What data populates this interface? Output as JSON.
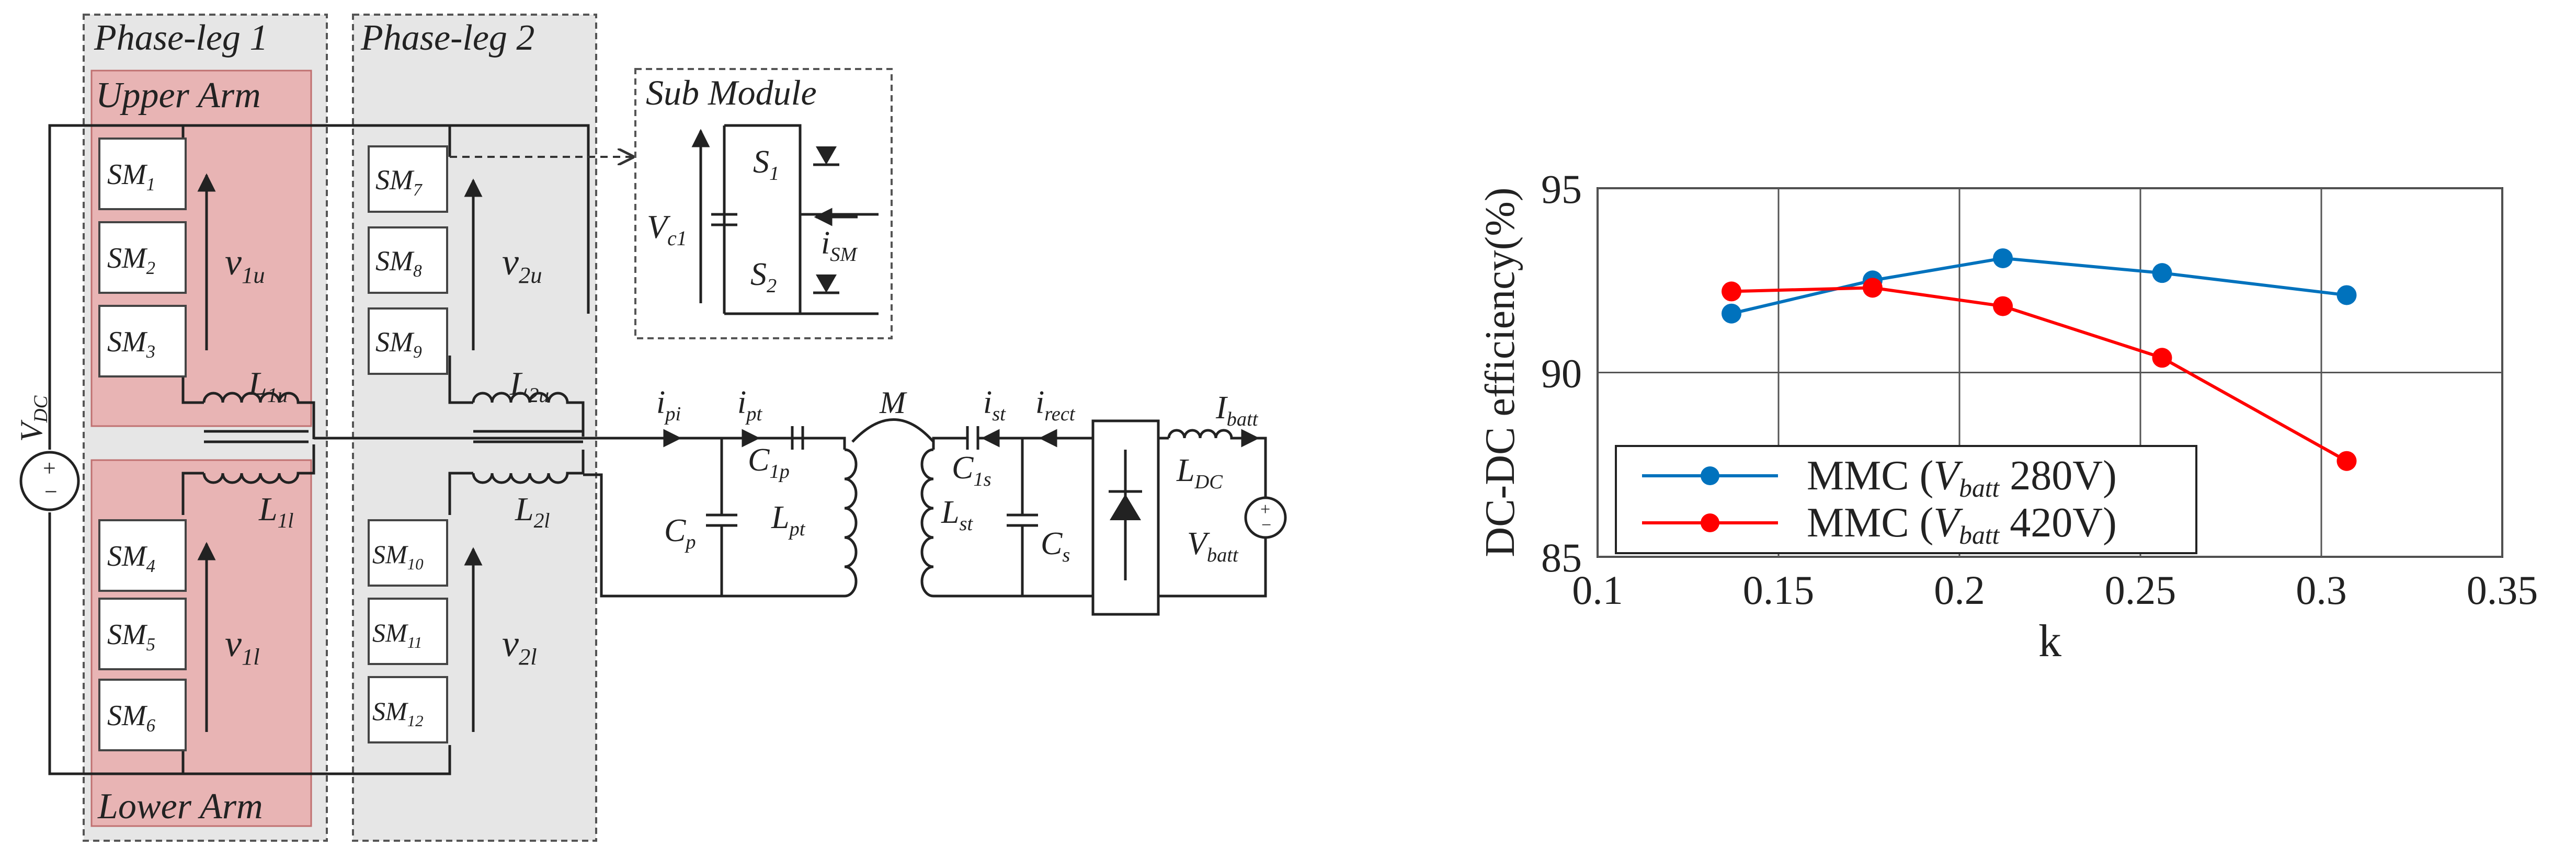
{
  "circuit": {
    "phase_leg_1": "Phase-leg 1",
    "phase_leg_2": "Phase-leg 2",
    "upper_arm": "Upper Arm",
    "lower_arm": "Lower Arm",
    "sub_module": "Sub Module",
    "vdc": {
      "main": "V",
      "sub": "DC"
    },
    "sm_leg1_upper": [
      [
        "SM",
        "1"
      ],
      [
        "SM",
        "2"
      ],
      [
        "SM",
        "3"
      ]
    ],
    "sm_leg1_lower": [
      [
        "SM",
        "4"
      ],
      [
        "SM",
        "5"
      ],
      [
        "SM",
        "6"
      ]
    ],
    "sm_leg2_upper": [
      [
        "SM",
        "7"
      ],
      [
        "SM",
        "8"
      ],
      [
        "SM",
        "9"
      ]
    ],
    "sm_leg2_lower": [
      [
        "SM",
        "10"
      ],
      [
        "SM",
        "11"
      ],
      [
        "SM",
        "12"
      ]
    ],
    "v1u": {
      "main": "v",
      "sub": "1u"
    },
    "v2u": {
      "main": "v",
      "sub": "2u"
    },
    "v1l": {
      "main": "v",
      "sub": "1l"
    },
    "v2l": {
      "main": "v",
      "sub": "2l"
    },
    "L1u": {
      "main": "L",
      "sub": "1u"
    },
    "L2u": {
      "main": "L",
      "sub": "2u"
    },
    "L1l": {
      "main": "L",
      "sub": "1l"
    },
    "L2l": {
      "main": "L",
      "sub": "2l"
    },
    "Vc1": {
      "main": "V",
      "sub": "c1"
    },
    "S1": {
      "main": "S",
      "sub": "1"
    },
    "S2": {
      "main": "S",
      "sub": "2"
    },
    "iSM": {
      "main": "i",
      "sub": "SM"
    },
    "ipi": {
      "main": "i",
      "sub": "pi"
    },
    "ipt": {
      "main": "i",
      "sub": "pt"
    },
    "M": "M",
    "ist": {
      "main": "i",
      "sub": "st"
    },
    "irect": {
      "main": "i",
      "sub": "rect"
    },
    "Ibatt": {
      "main": "I",
      "sub": "batt"
    },
    "C1p": {
      "main": "C",
      "sub": "1p"
    },
    "Cp": {
      "main": "C",
      "sub": "p"
    },
    "Lpt": {
      "main": "L",
      "sub": "pt"
    },
    "C1s": {
      "main": "C",
      "sub": "1s"
    },
    "Lst": {
      "main": "L",
      "sub": "st"
    },
    "Cs": {
      "main": "C",
      "sub": "s"
    },
    "LDC": {
      "main": "L",
      "sub": "DC"
    },
    "Vbatt": {
      "main": "V",
      "sub": "batt"
    }
  },
  "colors": {
    "leg_shade": "#e6e6e6",
    "arm_fill": "#e8b4b4",
    "series_blue": "#0072bd",
    "series_red": "#ff0000"
  },
  "chart_data": {
    "type": "line",
    "xlabel": "k",
    "ylabel": "DC-DC efficiency(%)",
    "xlim": [
      0.1,
      0.35
    ],
    "ylim": [
      85,
      95
    ],
    "xticks": [
      "0.1",
      "0.15",
      "0.2",
      "0.25",
      "0.3",
      "0.35"
    ],
    "yticks": [
      "85",
      "90",
      "95"
    ],
    "grid": true,
    "legend_position": "bottom-left",
    "series": [
      {
        "name": "MMC (V_batt 280V)",
        "legend": {
          "pre": "MMC (",
          "main": "V",
          "sub": "batt",
          "post": " 280V)"
        },
        "color": "#0072bd",
        "x": [
          0.137,
          0.176,
          0.212,
          0.256,
          0.307
        ],
        "y": [
          91.6,
          92.5,
          93.1,
          92.7,
          92.1
        ]
      },
      {
        "name": "MMC (V_batt 420V)",
        "legend": {
          "pre": "MMC (",
          "main": "V",
          "sub": "batt",
          "post": " 420V)"
        },
        "color": "#ff0000",
        "x": [
          0.137,
          0.176,
          0.212,
          0.256,
          0.307
        ],
        "y": [
          92.2,
          92.3,
          91.8,
          90.4,
          87.6
        ]
      }
    ]
  }
}
